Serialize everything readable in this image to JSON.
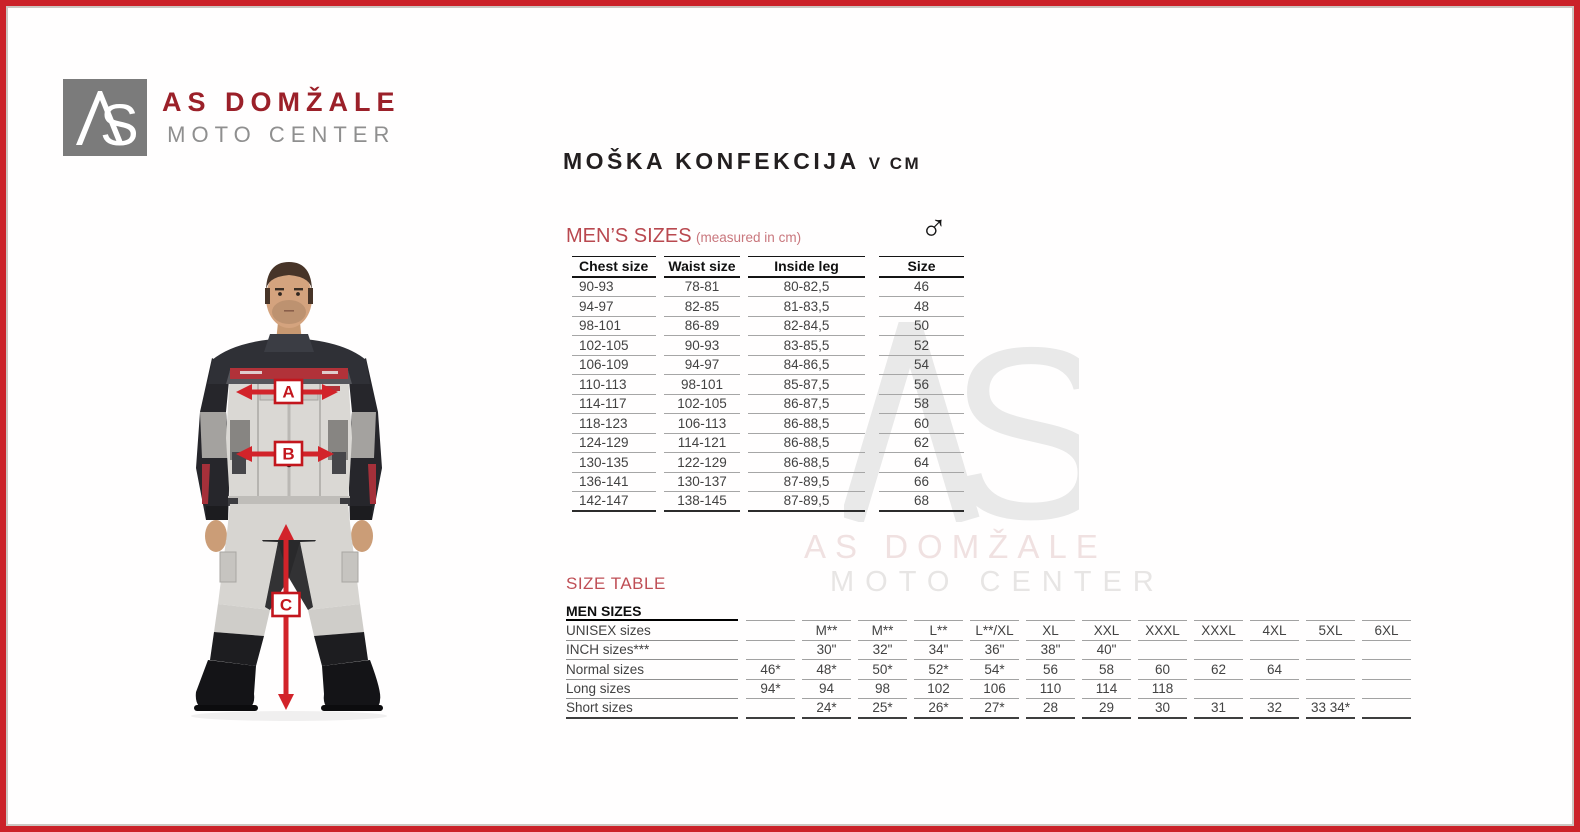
{
  "colors": {
    "accent_red": "#cb2229",
    "arrow_red": "#d2232a",
    "brand_red": "#9b2029",
    "section_red": "#bf4e55",
    "logo_gray": "#7b7b7b",
    "text_dark": "#231f20"
  },
  "logo": {
    "monogram": "AS",
    "title": "AS DOMŽALE",
    "subtitle": "MOTO CENTER"
  },
  "heading": {
    "main": "MOŠKA KONFEKCIJA",
    "suffix": "V CM"
  },
  "mens_sizes": {
    "title": "MEN’S SIZES",
    "subtitle": "(measured in cm)",
    "gender_symbol": "♂",
    "columns": [
      "Chest size",
      "Waist size",
      "Inside leg",
      "Size"
    ],
    "rows": [
      [
        "90-93",
        "78-81",
        "80-82,5",
        "46"
      ],
      [
        "94-97",
        "82-85",
        "81-83,5",
        "48"
      ],
      [
        "98-101",
        "86-89",
        "82-84,5",
        "50"
      ],
      [
        "102-105",
        "90-93",
        "83-85,5",
        "52"
      ],
      [
        "106-109",
        "94-97",
        "84-86,5",
        "54"
      ],
      [
        "110-113",
        "98-101",
        "85-87,5",
        "56"
      ],
      [
        "114-117",
        "102-105",
        "86-87,5",
        "58"
      ],
      [
        "118-123",
        "106-113",
        "86-88,5",
        "60"
      ],
      [
        "124-129",
        "114-121",
        "86-88,5",
        "62"
      ],
      [
        "130-135",
        "122-129",
        "86-88,5",
        "64"
      ],
      [
        "136-141",
        "130-137",
        "87-89,5",
        "66"
      ],
      [
        "142-147",
        "138-145",
        "87-89,5",
        "68"
      ]
    ]
  },
  "size_table": {
    "title": "SIZE TABLE",
    "header": "MEN SIZES",
    "rows": [
      {
        "label": "UNISEX sizes",
        "values": [
          "",
          "M**",
          "M**",
          "L**",
          "L**/XL",
          "XL",
          "XXL",
          "XXXL",
          "XXXL",
          "4XL",
          "5XL",
          "6XL"
        ]
      },
      {
        "label": "INCH sizes***",
        "values": [
          "",
          "30\"",
          "32\"",
          "34\"",
          "36\"",
          "38\"",
          "40\"",
          "",
          "",
          "",
          "",
          ""
        ]
      },
      {
        "label": "Normal sizes",
        "values": [
          "46*",
          "48*",
          "50*",
          "52*",
          "54*",
          "56",
          "58",
          "60",
          "62",
          "64",
          "",
          ""
        ]
      },
      {
        "label": "Long sizes",
        "values": [
          "94*",
          "94",
          "98",
          "102",
          "106",
          "110",
          "114",
          "118",
          "",
          "",
          "",
          ""
        ]
      },
      {
        "label": "Short sizes",
        "values": [
          "",
          "24*",
          "25*",
          "26*",
          "27*",
          "28",
          "29",
          "30",
          "31",
          "32",
          "33 34*",
          ""
        ]
      }
    ]
  },
  "figure": {
    "label_a": "A",
    "label_b": "B",
    "label_c": "C"
  },
  "watermark": {
    "monogram": "AS",
    "line1": "AS DOMŽALE",
    "line2": "MOTO CENTER"
  }
}
